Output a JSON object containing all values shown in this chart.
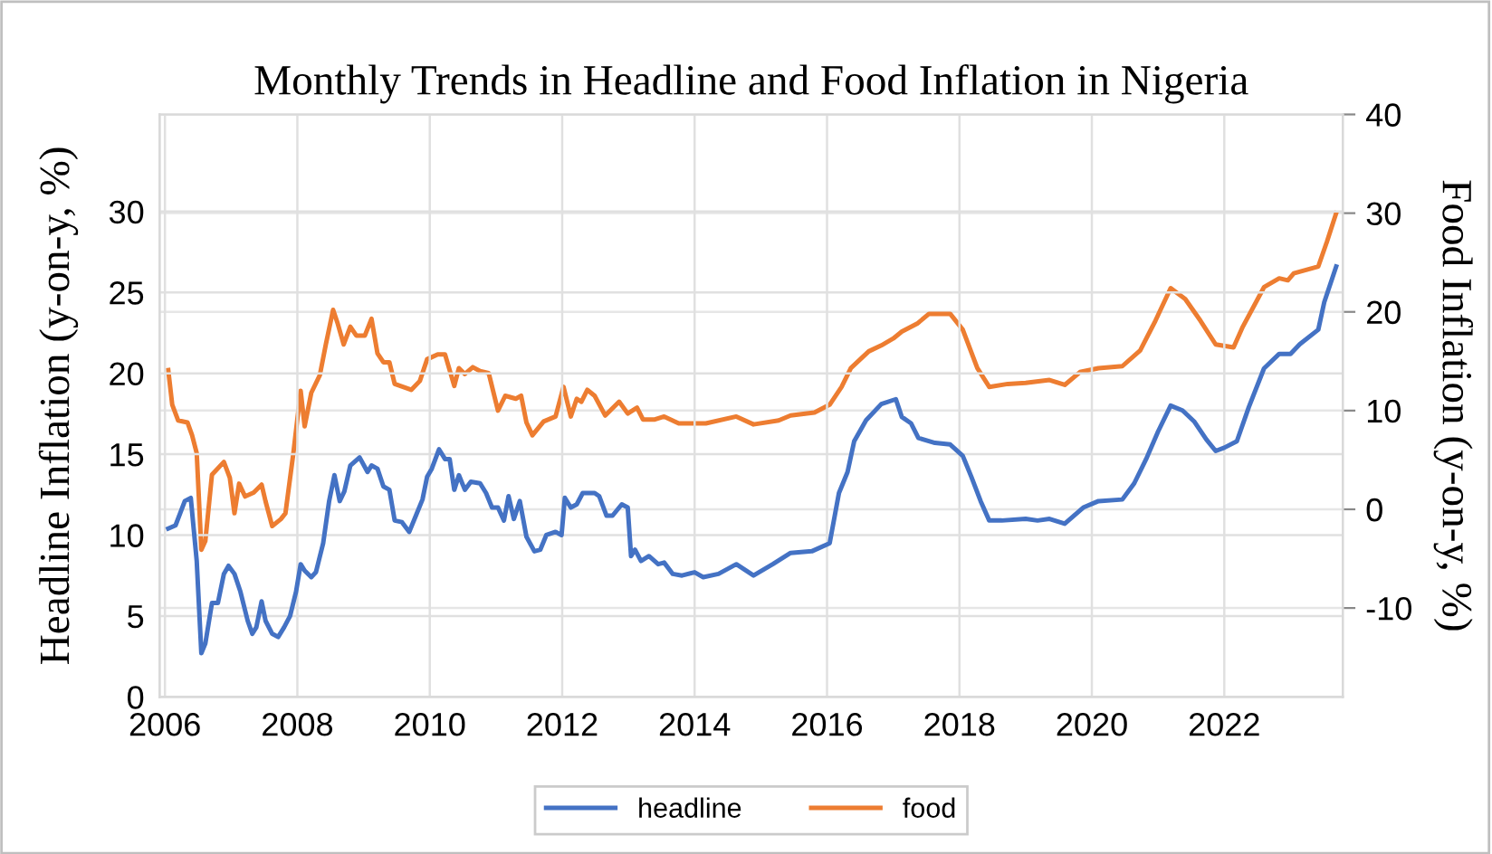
{
  "chart_data": {
    "type": "line",
    "title": "Monthly Trends in Headline and Food Inflation in Nigeria",
    "ylabel": "Headline Inflation (y-on-y, %)",
    "y2label": "Food Inflation (y-on-y, %)",
    "xlim": [
      2005.92,
      2023.79
    ],
    "xticks": [
      {
        "value": 2006,
        "label": "2006"
      },
      {
        "value": 2008,
        "label": "2008"
      },
      {
        "value": 2010,
        "label": "2010"
      },
      {
        "value": 2012,
        "label": "2012"
      },
      {
        "value": 2014,
        "label": "2014"
      },
      {
        "value": 2016,
        "label": "2016"
      },
      {
        "value": 2018,
        "label": "2018"
      },
      {
        "value": 2020,
        "label": "2020"
      },
      {
        "value": 2022,
        "label": "2022"
      }
    ],
    "ylim": [
      0,
      36
    ],
    "yticks": [
      0,
      5,
      10,
      15,
      20,
      25,
      30
    ],
    "y2lim": [
      -19,
      40
    ],
    "y2ticks": [
      {
        "value": -10,
        "label": "-10"
      },
      0,
      10,
      20,
      30,
      40
    ],
    "grid": true,
    "legend": "bottom",
    "marker": "none",
    "line_style": "solid",
    "series": [
      {
        "name": "headline",
        "color": "#4472c4",
        "axis": "y",
        "x": [
          2006.05,
          2006.16,
          2006.3,
          2006.39,
          2006.48,
          2006.55,
          2006.61,
          2006.71,
          2006.8,
          2006.89,
          2006.96,
          2007.05,
          2007.14,
          2007.25,
          2007.32,
          2007.38,
          2007.46,
          2007.52,
          2007.62,
          2007.71,
          2007.8,
          2007.89,
          2007.98,
          2008.05,
          2008.11,
          2008.21,
          2008.28,
          2008.39,
          2008.48,
          2008.56,
          2008.64,
          2008.71,
          2008.8,
          2008.94,
          2009.06,
          2009.12,
          2009.21,
          2009.3,
          2009.39,
          2009.47,
          2009.58,
          2009.69,
          2009.8,
          2009.89,
          2009.96,
          2010.03,
          2010.14,
          2010.23,
          2010.3,
          2010.37,
          2010.44,
          2010.53,
          2010.62,
          2010.76,
          2010.85,
          2010.94,
          2011.03,
          2011.12,
          2011.19,
          2011.27,
          2011.36,
          2011.46,
          2011.58,
          2011.67,
          2011.76,
          2011.9,
          2011.99,
          2012.04,
          2012.13,
          2012.22,
          2012.31,
          2012.49,
          2012.56,
          2012.67,
          2012.76,
          2012.9,
          2012.99,
          2013.04,
          2013.1,
          2013.19,
          2013.31,
          2013.45,
          2013.54,
          2013.67,
          2013.81,
          2014.0,
          2014.13,
          2014.36,
          2014.63,
          2014.89,
          2015.18,
          2015.45,
          2015.77,
          2016.04,
          2016.18,
          2016.31,
          2016.41,
          2016.59,
          2016.82,
          2017.04,
          2017.13,
          2017.27,
          2017.38,
          2017.63,
          2017.86,
          2018.05,
          2018.18,
          2018.32,
          2018.45,
          2018.64,
          2019.0,
          2019.18,
          2019.36,
          2019.59,
          2019.87,
          2020.1,
          2020.46,
          2020.64,
          2020.82,
          2021.0,
          2021.19,
          2021.37,
          2021.55,
          2021.73,
          2021.87,
          2022.0,
          2022.19,
          2022.37,
          2022.6,
          2022.83,
          2023.0,
          2023.14,
          2023.42,
          2023.51,
          2023.69
        ],
        "values": [
          10.4,
          10.6,
          12.1,
          12.3,
          8.4,
          2.7,
          3.3,
          5.8,
          5.8,
          7.6,
          8.1,
          7.6,
          6.5,
          4.7,
          3.9,
          4.3,
          5.9,
          4.7,
          3.9,
          3.7,
          4.3,
          5.0,
          6.5,
          8.2,
          7.8,
          7.4,
          7.7,
          9.5,
          12.1,
          13.7,
          12.1,
          12.7,
          14.3,
          14.8,
          13.9,
          14.3,
          14.1,
          13.0,
          12.8,
          10.9,
          10.8,
          10.2,
          11.3,
          12.2,
          13.6,
          14.1,
          15.3,
          14.7,
          14.7,
          12.8,
          13.7,
          12.8,
          13.3,
          13.2,
          12.6,
          11.7,
          11.7,
          10.9,
          12.4,
          11.0,
          12.1,
          9.9,
          9.0,
          9.1,
          10.0,
          10.2,
          10.0,
          12.3,
          11.7,
          11.9,
          12.6,
          12.6,
          12.4,
          11.2,
          11.2,
          11.9,
          11.7,
          8.7,
          9.1,
          8.4,
          8.7,
          8.2,
          8.3,
          7.6,
          7.5,
          7.7,
          7.4,
          7.6,
          8.2,
          7.5,
          8.2,
          8.9,
          9.0,
          9.5,
          12.6,
          13.9,
          15.8,
          17.1,
          18.1,
          18.4,
          17.3,
          16.9,
          16.0,
          15.7,
          15.6,
          14.9,
          13.6,
          12.1,
          10.9,
          10.9,
          11.0,
          10.9,
          11.0,
          10.7,
          11.7,
          12.1,
          12.2,
          13.2,
          14.7,
          16.4,
          18.0,
          17.7,
          17.0,
          15.9,
          15.2,
          15.4,
          15.8,
          17.9,
          20.3,
          21.2,
          21.2,
          21.8,
          22.7,
          24.4,
          26.6
        ]
      },
      {
        "name": "food",
        "color": "#ed7d31",
        "axis": "y2",
        "x": [
          2006.05,
          2006.11,
          2006.2,
          2006.34,
          2006.41,
          2006.48,
          2006.55,
          2006.61,
          2006.71,
          2006.89,
          2006.98,
          2007.05,
          2007.12,
          2007.21,
          2007.34,
          2007.46,
          2007.52,
          2007.62,
          2007.75,
          2007.82,
          2007.94,
          2008.05,
          2008.11,
          2008.21,
          2008.34,
          2008.43,
          2008.54,
          2008.61,
          2008.7,
          2008.8,
          2008.89,
          2009.02,
          2009.12,
          2009.21,
          2009.3,
          2009.39,
          2009.47,
          2009.72,
          2009.85,
          2009.96,
          2010.12,
          2010.23,
          2010.37,
          2010.44,
          2010.53,
          2010.65,
          2010.76,
          2010.89,
          2011.03,
          2011.14,
          2011.3,
          2011.38,
          2011.46,
          2011.55,
          2011.72,
          2011.9,
          2012.02,
          2012.13,
          2012.22,
          2012.29,
          2012.38,
          2012.49,
          2012.65,
          2012.86,
          2012.99,
          2013.13,
          2013.22,
          2013.4,
          2013.54,
          2013.76,
          2014.17,
          2014.63,
          2014.89,
          2015.27,
          2015.45,
          2015.81,
          2016.04,
          2016.22,
          2016.36,
          2016.63,
          2016.82,
          2017.0,
          2017.13,
          2017.36,
          2017.54,
          2017.86,
          2018.05,
          2018.27,
          2018.45,
          2018.73,
          2019.0,
          2019.36,
          2019.59,
          2019.82,
          2020.1,
          2020.46,
          2020.73,
          2020.96,
          2021.19,
          2021.41,
          2021.64,
          2021.87,
          2022.14,
          2022.28,
          2022.6,
          2022.83,
          2022.96,
          2023.05,
          2023.42,
          2023.55,
          2023.69
        ],
        "values": [
          14.1,
          10.6,
          9.0,
          8.8,
          7.5,
          5.7,
          -4.1,
          -3.2,
          3.5,
          4.8,
          3.2,
          -0.4,
          2.6,
          1.3,
          1.7,
          2.5,
          0.8,
          -1.7,
          -1.0,
          -0.4,
          5.7,
          12.0,
          8.4,
          11.8,
          13.6,
          16.7,
          20.2,
          18.8,
          16.7,
          18.5,
          17.6,
          17.6,
          19.3,
          15.8,
          14.9,
          14.9,
          12.7,
          12.1,
          13.0,
          15.2,
          15.7,
          15.7,
          12.5,
          14.3,
          13.7,
          14.4,
          14.0,
          13.8,
          10.0,
          11.5,
          11.2,
          11.5,
          8.8,
          7.5,
          8.9,
          9.4,
          12.4,
          9.4,
          11.2,
          10.9,
          12.1,
          11.5,
          9.5,
          10.9,
          9.7,
          10.3,
          9.1,
          9.1,
          9.4,
          8.7,
          8.7,
          9.4,
          8.6,
          9.0,
          9.5,
          9.8,
          10.6,
          12.4,
          14.3,
          16.0,
          16.6,
          17.3,
          18.0,
          18.8,
          19.8,
          19.8,
          18.2,
          14.3,
          12.4,
          12.7,
          12.8,
          13.1,
          12.6,
          13.9,
          14.3,
          14.5,
          16.1,
          19.1,
          22.4,
          21.3,
          19.1,
          16.7,
          16.4,
          18.5,
          22.5,
          23.4,
          23.2,
          23.9,
          24.6,
          27.1,
          30.0
        ]
      }
    ]
  }
}
